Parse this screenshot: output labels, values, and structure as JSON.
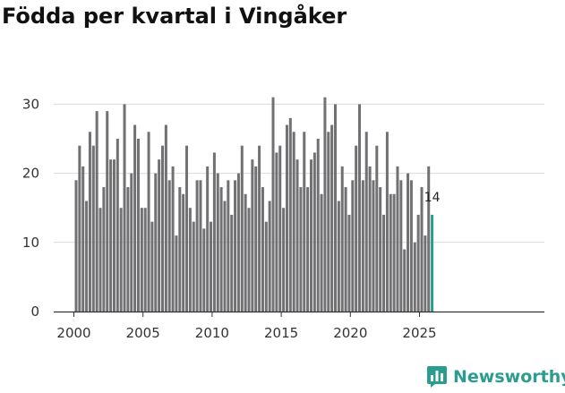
{
  "chart_data": {
    "type": "bar",
    "title": "Födda per kvartal i Vingåker",
    "xlabel": "",
    "ylabel": "",
    "ylim": [
      0,
      33
    ],
    "yticks": [
      0,
      10,
      20,
      30
    ],
    "xticks": [
      "2000",
      "2005",
      "2010",
      "2015",
      "2020",
      "2025"
    ],
    "grid": true,
    "highlight_color": "#2a9d8f",
    "bar_color": "#717073",
    "highlight_label": "14",
    "categories": [
      "2000 Q1",
      "2000 Q2",
      "2000 Q3",
      "2000 Q4",
      "2001 Q1",
      "2001 Q2",
      "2001 Q3",
      "2001 Q4",
      "2002 Q1",
      "2002 Q2",
      "2002 Q3",
      "2002 Q4",
      "2003 Q1",
      "2003 Q2",
      "2003 Q3",
      "2003 Q4",
      "2004 Q1",
      "2004 Q2",
      "2004 Q3",
      "2004 Q4",
      "2005 Q1",
      "2005 Q2",
      "2005 Q3",
      "2005 Q4",
      "2006 Q1",
      "2006 Q2",
      "2006 Q3",
      "2006 Q4",
      "2007 Q1",
      "2007 Q2",
      "2007 Q3",
      "2007 Q4",
      "2008 Q1",
      "2008 Q2",
      "2008 Q3",
      "2008 Q4",
      "2009 Q1",
      "2009 Q2",
      "2009 Q3",
      "2009 Q4",
      "2010 Q1",
      "2010 Q2",
      "2010 Q3",
      "2010 Q4",
      "2011 Q1",
      "2011 Q2",
      "2011 Q3",
      "2011 Q4",
      "2012 Q1",
      "2012 Q2",
      "2012 Q3",
      "2012 Q4",
      "2013 Q1",
      "2013 Q2",
      "2013 Q3",
      "2013 Q4",
      "2014 Q1",
      "2014 Q2",
      "2014 Q3",
      "2014 Q4",
      "2015 Q1",
      "2015 Q2",
      "2015 Q3",
      "2015 Q4",
      "2016 Q1",
      "2016 Q2",
      "2016 Q3",
      "2016 Q4",
      "2017 Q1",
      "2017 Q2",
      "2017 Q3",
      "2017 Q4",
      "2018 Q1",
      "2018 Q2",
      "2018 Q3",
      "2018 Q4",
      "2019 Q1",
      "2019 Q2",
      "2019 Q3",
      "2019 Q4",
      "2020 Q1",
      "2020 Q2",
      "2020 Q3",
      "2020 Q4",
      "2021 Q1",
      "2021 Q2",
      "2021 Q3",
      "2021 Q4",
      "2022 Q1",
      "2022 Q2",
      "2022 Q3",
      "2022 Q4",
      "2023 Q1",
      "2023 Q2",
      "2023 Q3",
      "2023 Q4",
      "2024 Q1",
      "2024 Q2",
      "2024 Q3",
      "2024 Q4",
      "2025 Q1",
      "2025 Q2",
      "2025 Q3",
      "2025 Q4"
    ],
    "values": [
      19,
      24,
      21,
      16,
      26,
      24,
      29,
      15,
      18,
      29,
      22,
      22,
      25,
      15,
      30,
      18,
      20,
      27,
      25,
      15,
      15,
      26,
      13,
      20,
      22,
      24,
      27,
      19,
      21,
      11,
      18,
      17,
      24,
      15,
      13,
      19,
      19,
      12,
      21,
      13,
      23,
      20,
      18,
      16,
      19,
      14,
      19,
      20,
      24,
      17,
      15,
      22,
      21,
      24,
      18,
      13,
      16,
      31,
      23,
      24,
      15,
      27,
      28,
      26,
      22,
      18,
      26,
      18,
      22,
      23,
      25,
      17,
      31,
      26,
      27,
      30,
      16,
      21,
      18,
      14,
      19,
      24,
      30,
      19,
      26,
      21,
      19,
      24,
      18,
      14,
      26,
      17,
      17,
      21,
      19,
      9,
      20,
      19,
      10,
      14,
      18,
      11,
      21,
      14
    ]
  },
  "branding": {
    "name": "Newsworthy",
    "icon": "bar-chart-logo-icon"
  }
}
